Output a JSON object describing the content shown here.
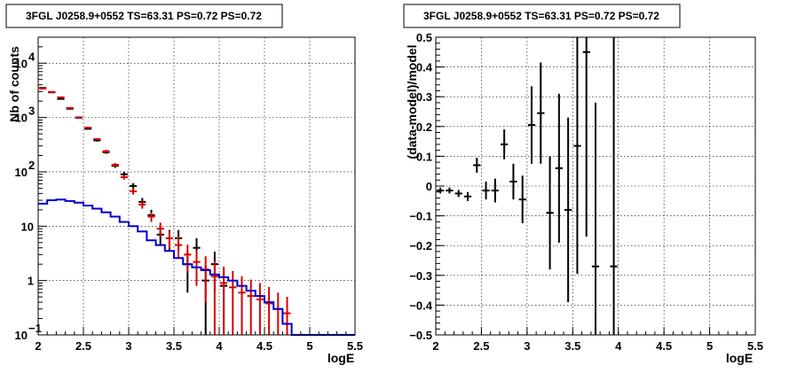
{
  "chart_data": [
    {
      "type": "scatter",
      "title": "3FGL J0258.9+0552 TS=63.31 PS=0.72 PS=0.72",
      "xlabel": "logE",
      "ylabel": "Nb of counts",
      "xlim": [
        2,
        5.5
      ],
      "ylim": [
        0.1,
        30000
      ],
      "yscale": "log",
      "grid": true,
      "x_ticks": [
        "2",
        "2.5",
        "3",
        "3.5",
        "4",
        "4.5",
        "5",
        "5.5"
      ],
      "y_ticks": [
        {
          "value": 0.1,
          "label": "10",
          "exp": "−1"
        },
        {
          "value": 1,
          "label": "1",
          "exp": ""
        },
        {
          "value": 10,
          "label": "10",
          "exp": ""
        },
        {
          "value": 100,
          "label": "10",
          "exp": "2"
        },
        {
          "value": 1000,
          "label": "10",
          "exp": "3"
        },
        {
          "value": 10000,
          "label": "10",
          "exp": "4"
        }
      ],
      "bin_width": 0.1,
      "series": [
        {
          "color": "#000000",
          "style": "errorbar",
          "x": [
            2.05,
            2.15,
            2.25,
            2.35,
            2.45,
            2.55,
            2.65,
            2.75,
            2.85,
            2.95,
            3.05,
            3.15,
            3.25,
            3.35,
            3.45,
            3.55,
            3.65,
            3.75,
            3.85,
            3.95,
            4.05
          ],
          "y": [
            3500,
            2900,
            2200,
            1450,
            1000,
            620,
            380,
            230,
            130,
            90,
            55,
            28,
            16,
            7,
            6,
            6,
            2,
            4,
            1,
            2,
            0.8
          ],
          "err_low": [
            60,
            55,
            45,
            38,
            32,
            25,
            20,
            15,
            12,
            10,
            7,
            5,
            4,
            2.6,
            2.5,
            2.5,
            1.4,
            2,
            0.9,
            1.4,
            0.7
          ],
          "err_high": [
            60,
            55,
            45,
            38,
            32,
            25,
            20,
            15,
            12,
            10,
            7,
            5,
            4,
            2.6,
            2.5,
            2.5,
            1.4,
            2,
            0.9,
            1.4,
            0.7
          ]
        },
        {
          "color": "#dd0000",
          "style": "errorbar",
          "x": [
            2.05,
            2.15,
            2.25,
            2.35,
            2.45,
            2.55,
            2.65,
            2.75,
            2.85,
            2.95,
            3.05,
            3.15,
            3.25,
            3.35,
            3.45,
            3.55,
            3.65,
            3.75,
            3.85,
            3.95,
            4.05,
            4.15,
            4.25,
            4.35,
            4.45,
            4.55,
            4.65,
            4.75
          ],
          "y": [
            3400,
            2950,
            2350,
            1500,
            980,
            650,
            400,
            240,
            135,
            80,
            44,
            25,
            15,
            9,
            6,
            4.5,
            3,
            2.2,
            1.6,
            1.2,
            0.9,
            0.75,
            0.6,
            0.52,
            0.45,
            0.38,
            0.3,
            0.25
          ],
          "err_low": [
            50,
            45,
            40,
            35,
            28,
            22,
            18,
            14,
            10,
            8,
            6,
            4,
            3,
            2.6,
            2.1,
            1.9,
            1.6,
            1.4,
            1.2,
            1.1,
            0.9,
            0.75,
            0.6,
            0.52,
            0.45,
            0.38,
            0.3,
            0.25
          ],
          "err_high": [
            50,
            45,
            40,
            35,
            28,
            22,
            18,
            14,
            10,
            8,
            6,
            4,
            3,
            2.6,
            2.1,
            1.9,
            1.6,
            1.4,
            1.2,
            1.1,
            0.9,
            0.75,
            0.6,
            0.52,
            0.45,
            0.38,
            0.3,
            0.25
          ]
        },
        {
          "color": "#0000cc",
          "style": "step",
          "edges": [
            2.0,
            2.1,
            2.2,
            2.3,
            2.4,
            2.5,
            2.6,
            2.7,
            2.8,
            2.9,
            3.0,
            3.1,
            3.2,
            3.3,
            3.4,
            3.5,
            3.6,
            3.7,
            3.8,
            3.9,
            4.0,
            4.1,
            4.2,
            4.3,
            4.4,
            4.5,
            4.6,
            4.7,
            4.8,
            5.5
          ],
          "values": [
            26,
            30,
            31,
            29,
            27,
            24,
            21,
            18,
            15,
            12,
            10,
            8,
            5.5,
            4.5,
            3.5,
            2.6,
            2.0,
            1.75,
            1.55,
            1.3,
            1.15,
            1.0,
            0.8,
            0.65,
            0.52,
            0.4,
            0.3,
            0.16,
            0.1
          ]
        }
      ]
    },
    {
      "type": "scatter",
      "title": "3FGL J0258.9+0552 TS=63.31 PS=0.72 PS=0.72",
      "xlabel": "logE",
      "ylabel": "(data-model)/model",
      "xlim": [
        2,
        5.5
      ],
      "ylim": [
        -0.5,
        0.5
      ],
      "grid": true,
      "x_ticks": [
        "2",
        "2.5",
        "3",
        "3.5",
        "4",
        "4.5",
        "5",
        "5.5"
      ],
      "y_ticks": [
        "−0.5",
        "−0.4",
        "−0.3",
        "−0.2",
        "−0.1",
        "0",
        "0.1",
        "0.2",
        "0.3",
        "0.4",
        "0.5"
      ],
      "bin_width": 0.1,
      "series": [
        {
          "color": "#000000",
          "style": "errorbar",
          "x": [
            2.05,
            2.15,
            2.25,
            2.35,
            2.45,
            2.55,
            2.65,
            2.75,
            2.85,
            2.95,
            3.05,
            3.15,
            3.25,
            3.35,
            3.45,
            3.55,
            3.65,
            3.75,
            3.95
          ],
          "y": [
            -0.015,
            -0.015,
            -0.025,
            -0.035,
            0.07,
            -0.015,
            -0.015,
            0.14,
            0.015,
            -0.045,
            0.205,
            0.245,
            -0.09,
            0.06,
            -0.08,
            0.135,
            0.45,
            -0.27,
            -0.27
          ],
          "err_low": [
            0.01,
            0.01,
            0.012,
            0.015,
            0.025,
            0.03,
            0.04,
            0.05,
            0.06,
            0.08,
            0.13,
            0.17,
            0.19,
            0.25,
            0.31,
            0.43,
            0.62,
            0.5,
            0.5
          ],
          "err_high": [
            0.01,
            0.01,
            0.012,
            0.015,
            0.025,
            0.03,
            0.04,
            0.05,
            0.06,
            0.08,
            0.13,
            0.17,
            0.19,
            0.25,
            0.31,
            0.43,
            0.62,
            0.55,
            0.8
          ]
        }
      ]
    }
  ]
}
